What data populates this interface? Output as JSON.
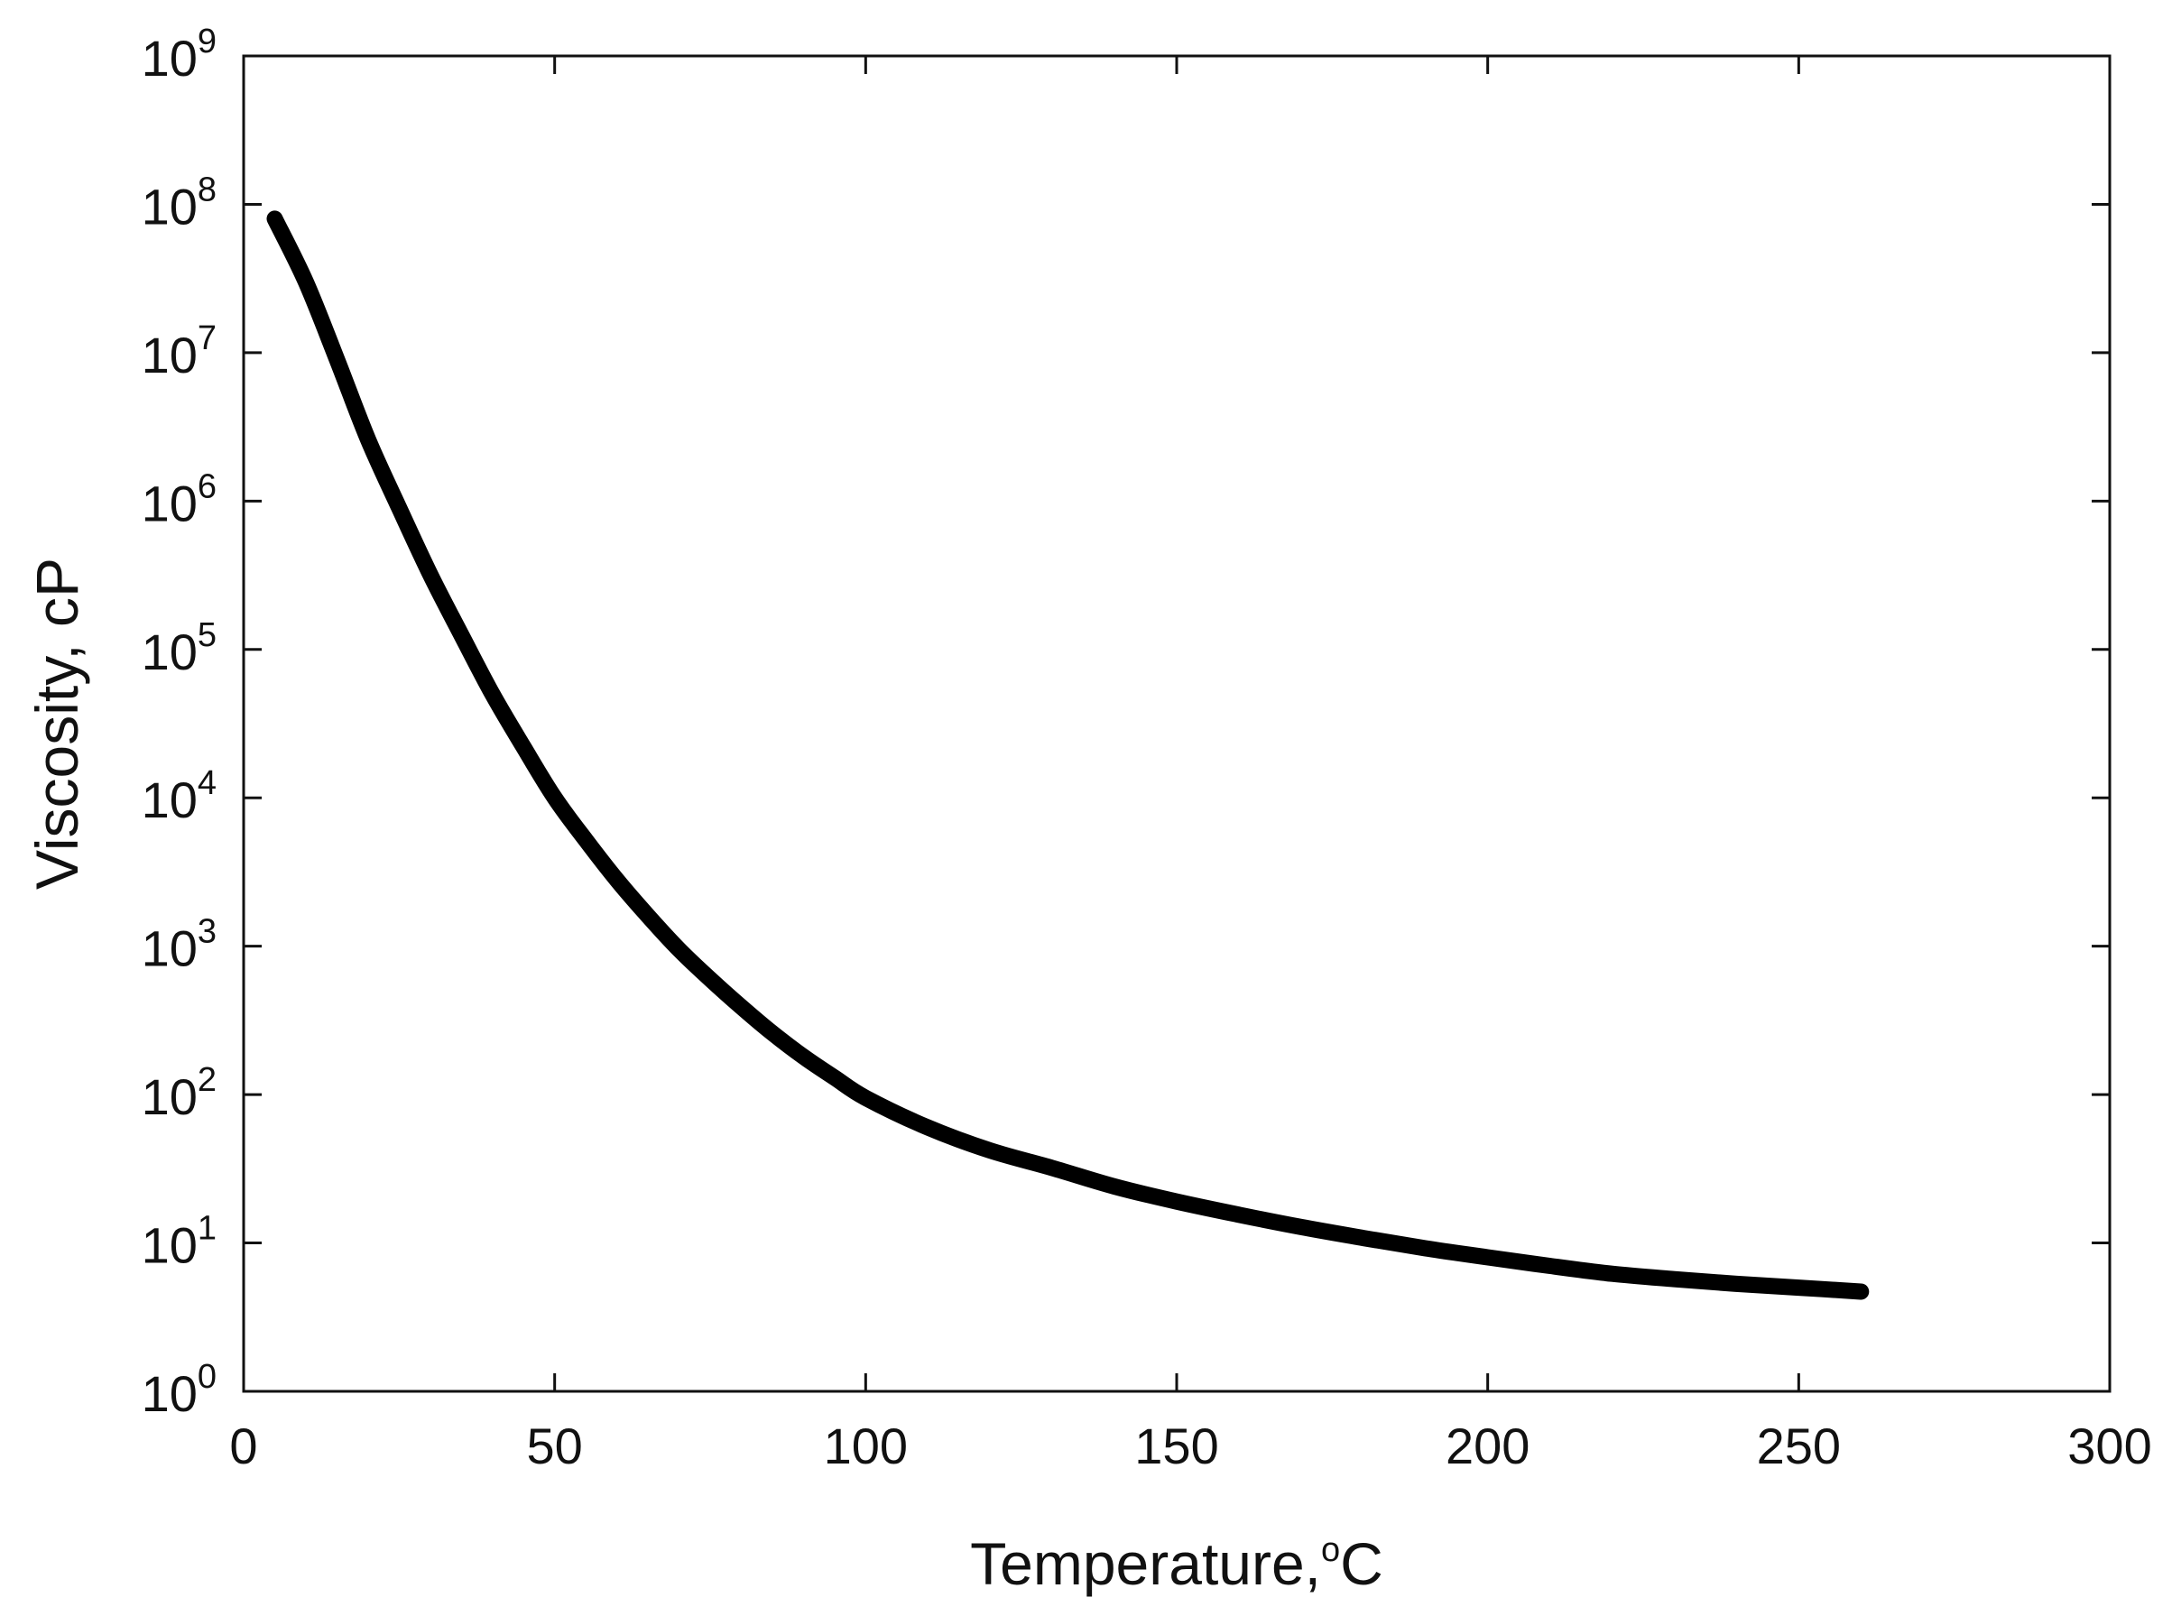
{
  "chart_data": {
    "type": "line",
    "title": "",
    "xlabel": "Temperature,",
    "xlabel_unit_sup": "o",
    "xlabel_unit": "C",
    "ylabel": "Viscosity, cP",
    "xlim": [
      0,
      300
    ],
    "ylim": [
      1,
      1000000000
    ],
    "yscale": "log",
    "grid": false,
    "legend": "none",
    "x_ticks": [
      0,
      50,
      100,
      150,
      200,
      250,
      300
    ],
    "x_tick_labels": [
      "0",
      "50",
      "100",
      "150",
      "200",
      "250",
      "300"
    ],
    "y_ticks": [
      {
        "value": 1,
        "base": "10",
        "exp": "0"
      },
      {
        "value": 10,
        "base": "10",
        "exp": "1"
      },
      {
        "value": 100,
        "base": "10",
        "exp": "2"
      },
      {
        "value": 1000,
        "base": "10",
        "exp": "3"
      },
      {
        "value": 10000,
        "base": "10",
        "exp": "4"
      },
      {
        "value": 100000,
        "base": "10",
        "exp": "5"
      },
      {
        "value": 1000000,
        "base": "10",
        "exp": "6"
      },
      {
        "value": 10000000,
        "base": "10",
        "exp": "7"
      },
      {
        "value": 100000000,
        "base": "10",
        "exp": "8"
      },
      {
        "value": 1000000000,
        "base": "10",
        "exp": "9"
      }
    ],
    "series": [
      {
        "color": "#000000",
        "x": [
          5,
          10,
          15,
          20,
          25,
          30,
          35,
          40,
          45,
          50,
          55,
          60,
          65,
          70,
          75,
          80,
          85,
          90,
          95,
          100,
          110,
          120,
          130,
          140,
          150,
          160,
          170,
          180,
          190,
          200,
          210,
          220,
          230,
          240,
          250,
          260
        ],
        "y": [
          80000000,
          30000000,
          9000000,
          2600000,
          900000,
          320000,
          125000,
          50000,
          22000,
          10000,
          5200,
          2800,
          1600,
          950,
          600,
          390,
          260,
          180,
          130,
          95,
          60,
          42,
          32,
          24,
          19,
          15.5,
          12.8,
          10.8,
          9.2,
          8,
          7,
          6.2,
          5.7,
          5.3,
          5,
          4.7
        ]
      }
    ]
  }
}
